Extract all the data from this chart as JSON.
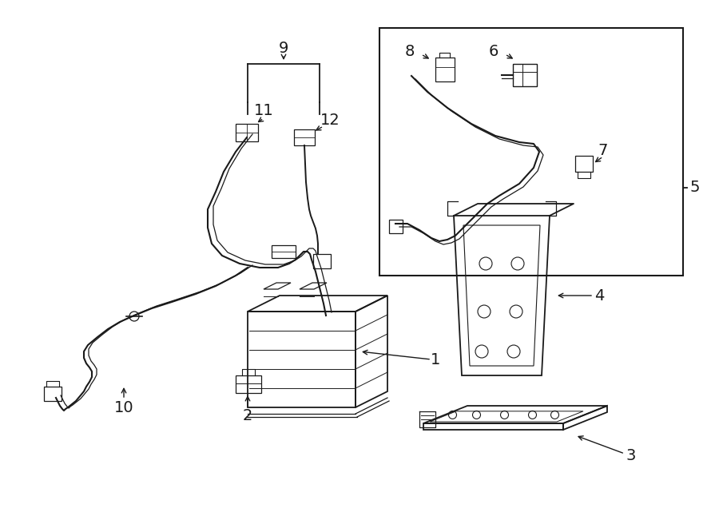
{
  "bg_color": "#ffffff",
  "line_color": "#1a1a1a",
  "fig_width": 9.0,
  "fig_height": 6.61,
  "dpi": 100,
  "label_fontsize": 14,
  "lw": 1.3
}
